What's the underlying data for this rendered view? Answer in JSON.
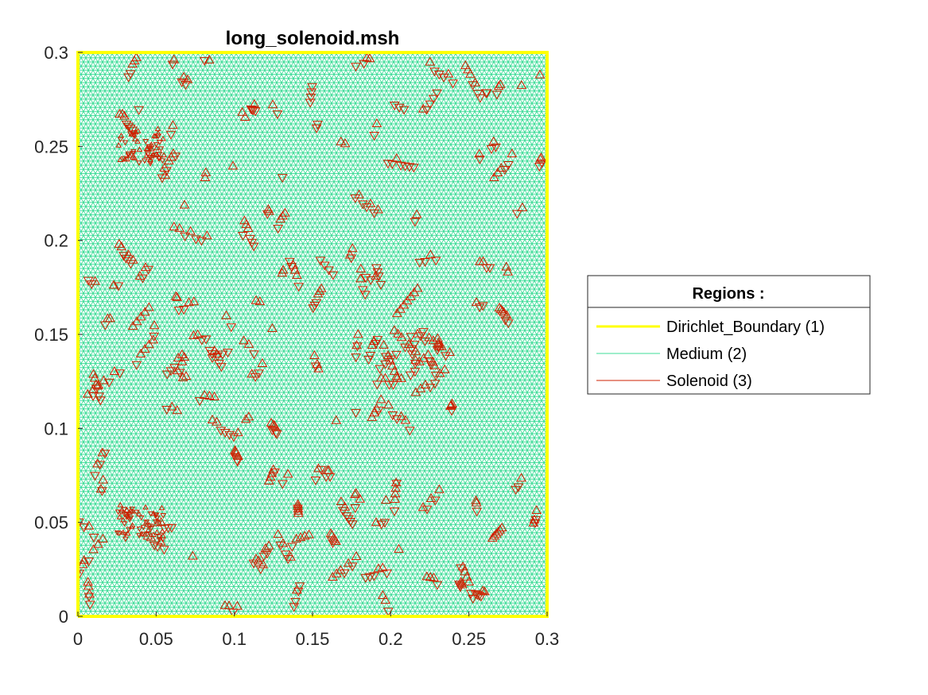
{
  "chart_data": {
    "type": "mesh",
    "title": "long_solenoid.msh",
    "xlabel": "",
    "ylabel": "",
    "xlim": [
      0,
      0.3
    ],
    "ylim": [
      0,
      0.3
    ],
    "x_ticks": [
      "0",
      "0.05",
      "0.1",
      "0.15",
      "0.2",
      "0.25",
      "0.3"
    ],
    "y_ticks": [
      "0",
      "0.05",
      "0.1",
      "0.15",
      "0.2",
      "0.25",
      "0.3"
    ],
    "grid": false,
    "legend": {
      "placement": "right",
      "title": "Regions :",
      "entries": [
        {
          "label": "Dirichlet_Boundary (1)",
          "color": "#ffff00"
        },
        {
          "label": "Medium (2)",
          "color": "#3ddc97"
        },
        {
          "label": "Solenoid (3)",
          "color": "#cc2200"
        }
      ]
    },
    "regions": [
      {
        "name": "Dirichlet_Boundary (1)",
        "id": 1,
        "kind": "boundary",
        "color": "#ffff00",
        "x": [
          0,
          0.3,
          0.3,
          0,
          0
        ],
        "y": [
          0,
          0,
          0.3,
          0.3,
          0
        ]
      },
      {
        "name": "Medium (2)",
        "id": 2,
        "kind": "mesh",
        "color": "#3ddc97",
        "extent_x": [
          0,
          0.3
        ],
        "extent_y": [
          0,
          0.3
        ]
      },
      {
        "name": "Solenoid (3)",
        "id": 3,
        "kind": "mesh",
        "color": "#cc2200",
        "coil_x": 0.04,
        "coil_y": [
          0.05,
          0.25
        ]
      }
    ]
  }
}
